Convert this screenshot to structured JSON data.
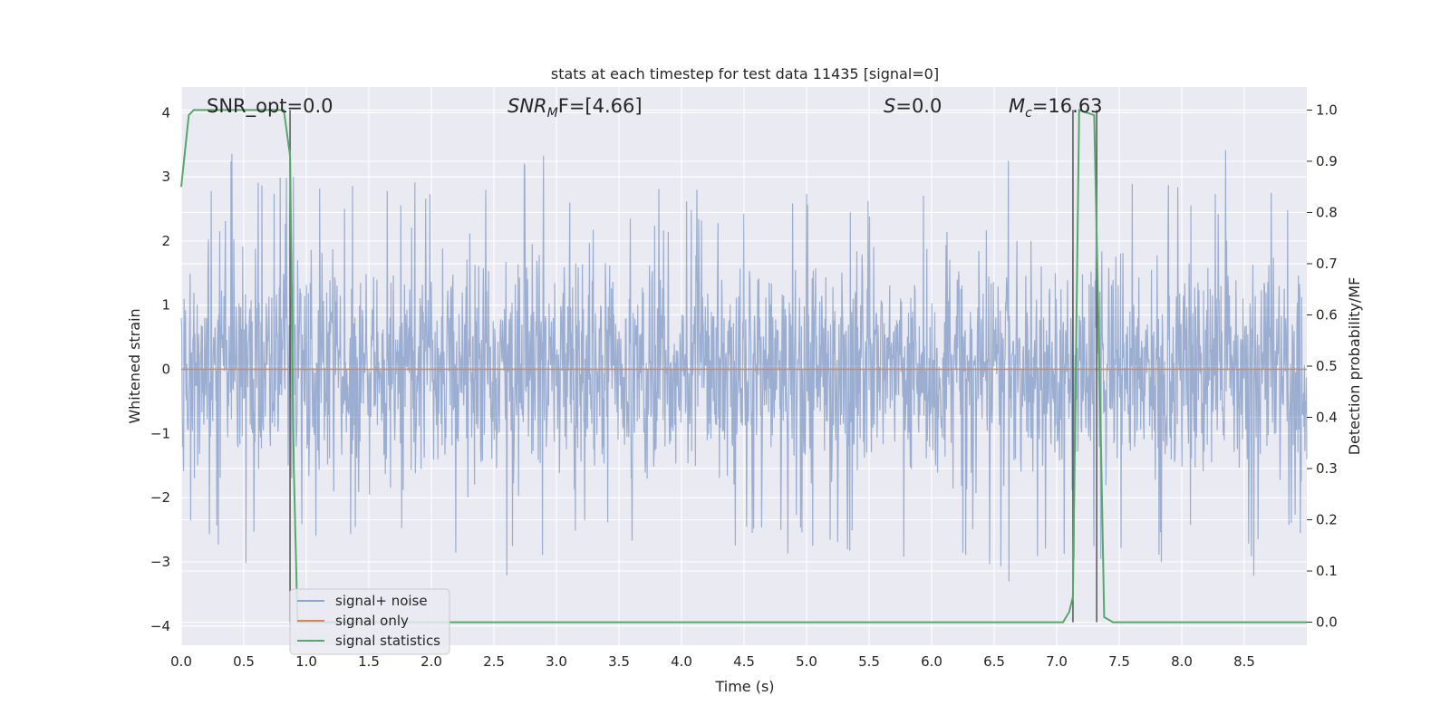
{
  "chart_data": {
    "type": "line",
    "title": "stats at each timestep for test data 11435 [signal=0]",
    "xlabel": "Time (s)",
    "ylabel": "Whitened strain",
    "y2label": "Detection probability/MF",
    "xlim": [
      0.0,
      9.0
    ],
    "ylim": [
      -4.3,
      4.4
    ],
    "y2lim": [
      -0.045,
      1.045
    ],
    "x_ticks": [
      0.0,
      0.5,
      1.0,
      1.5,
      2.0,
      2.5,
      3.0,
      3.5,
      4.0,
      4.5,
      5.0,
      5.5,
      6.0,
      6.5,
      7.0,
      7.5,
      8.0,
      8.5
    ],
    "x_tick_labels": [
      "0.0",
      "0.5",
      "1.0",
      "1.5",
      "2.0",
      "2.5",
      "3.0",
      "3.5",
      "4.0",
      "4.5",
      "5.0",
      "5.5",
      "6.0",
      "6.5",
      "7.0",
      "7.5",
      "8.0",
      "8.5"
    ],
    "y_ticks": [
      4,
      3,
      2,
      1,
      0,
      -1,
      -2,
      -3,
      -4
    ],
    "y_tick_labels": [
      "4",
      "3",
      "2",
      "1",
      "0",
      "−1",
      "−2",
      "−3",
      "−4"
    ],
    "y2_ticks": [
      1.0,
      0.9,
      0.8,
      0.7,
      0.6,
      0.5,
      0.4,
      0.3,
      0.2,
      0.1,
      0.0
    ],
    "y2_tick_labels": [
      "1.0",
      "0.9",
      "0.8",
      "0.7",
      "0.6",
      "0.5",
      "0.4",
      "0.3",
      "0.2",
      "0.1",
      "0.0"
    ],
    "grid": true,
    "annotations": {
      "snr_opt": "SNR_opt=0.0",
      "snr_mf_main": "SNR",
      "snr_mf_sub": "M",
      "snr_mf_rest": "F=[4.66]",
      "s_main": "S",
      "s_rest": "=0.0",
      "mc_main": "M",
      "mc_sub": "c",
      "mc_rest": "=16.63"
    },
    "vertical_markers": [
      0.87,
      7.13,
      7.32
    ],
    "series": [
      {
        "name": "signal+ noise",
        "color": "#4c72b0",
        "description_range": [
          -4.0,
          4.0
        ],
        "envelope_sample_x": [
          0.0,
          0.25,
          0.45,
          0.7,
          1.0,
          1.3,
          1.5,
          1.8,
          2.0,
          2.3,
          2.5,
          2.75,
          3.0,
          3.3,
          3.5,
          3.8,
          4.0,
          4.3,
          4.5,
          4.8,
          5.0,
          5.3,
          5.6,
          5.8,
          6.0,
          6.3,
          6.5,
          6.7,
          7.0,
          7.3,
          7.5,
          7.8,
          8.0,
          8.3,
          8.45,
          8.7,
          9.0
        ],
        "envelope_upper": [
          2.7,
          3.2,
          3.5,
          3.3,
          3.2,
          3.0,
          3.1,
          3.0,
          3.0,
          3.4,
          3.0,
          3.7,
          3.1,
          3.0,
          2.9,
          2.8,
          3.0,
          2.8,
          3.0,
          2.8,
          3.0,
          3.1,
          2.8,
          3.0,
          3.0,
          2.9,
          3.4,
          3.5,
          3.1,
          3.0,
          3.1,
          3.1,
          3.0,
          3.3,
          4.0,
          3.3,
          2.7
        ],
        "envelope_lower": [
          -2.6,
          -3.0,
          -3.0,
          -3.1,
          -3.0,
          -3.2,
          -2.8,
          -2.7,
          -3.0,
          -3.5,
          -3.6,
          -3.3,
          -3.0,
          -2.9,
          -2.8,
          -2.8,
          -2.7,
          -2.8,
          -2.8,
          -2.9,
          -3.1,
          -3.0,
          -3.9,
          -3.5,
          -2.8,
          -2.9,
          -3.4,
          -3.8,
          -3.2,
          -3.4,
          -3.2,
          -3.1,
          -3.0,
          -3.0,
          -3.5,
          -3.0,
          -2.5
        ]
      },
      {
        "name": "signal only",
        "color": "#dd8452",
        "x": [
          0.0,
          9.0
        ],
        "y": [
          0.0,
          0.0
        ]
      },
      {
        "name": "signal statistics",
        "color": "#55a868",
        "axis": "right",
        "x": [
          0.0,
          0.06,
          0.1,
          0.3,
          0.6,
          0.82,
          0.87,
          0.9,
          0.93,
          1.0,
          7.05,
          7.1,
          7.13,
          7.18,
          7.3,
          7.35,
          7.38,
          7.45,
          9.0
        ],
        "y": [
          0.85,
          0.99,
          1.0,
          1.0,
          1.0,
          1.0,
          0.91,
          0.3,
          0.0,
          0.0,
          0.0,
          0.02,
          0.05,
          1.0,
          0.99,
          0.4,
          0.01,
          0.0,
          0.0
        ]
      }
    ],
    "legend": {
      "position": "lower-left",
      "entries": [
        "signal+ noise",
        "signal only",
        "signal statistics"
      ]
    }
  }
}
